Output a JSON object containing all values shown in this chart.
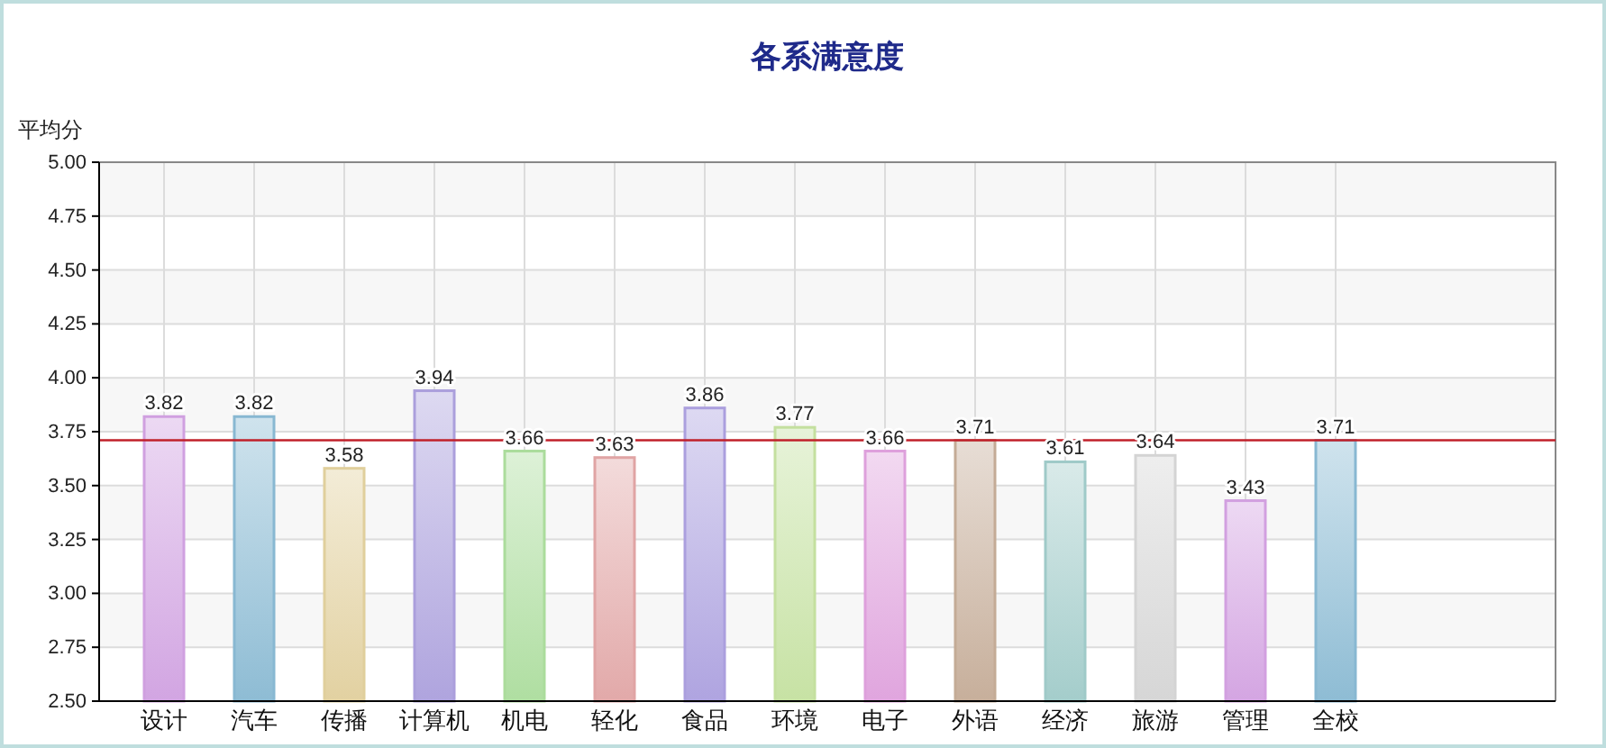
{
  "chart_data": {
    "type": "bar",
    "title": "各系满意度",
    "ylabel": "平均分",
    "categories": [
      "设计",
      "汽车",
      "传播",
      "计算机",
      "机电",
      "轻化",
      "食品",
      "环境",
      "电子",
      "外语",
      "经济",
      "旅游",
      "管理",
      "全校"
    ],
    "values": [
      3.82,
      3.82,
      3.58,
      3.94,
      3.66,
      3.63,
      3.86,
      3.77,
      3.66,
      3.71,
      3.61,
      3.64,
      3.43,
      3.71
    ],
    "colors": [
      "#d0a0e0",
      "#88b8d2",
      "#e0cf9c",
      "#ab9fdc",
      "#abdc9c",
      "#e0a4a4",
      "#ab9fde",
      "#c4e09f",
      "#dea0dc",
      "#c4ab96",
      "#9fcac8",
      "#d4d4d4",
      "#d2a0e0",
      "#88b8d2"
    ],
    "ylim": [
      2.5,
      5
    ],
    "yticks": [
      {
        "value": 2.5,
        "label": "2.50"
      },
      {
        "value": 2.75,
        "label": "2.75"
      },
      {
        "value": 3,
        "label": "3.00"
      },
      {
        "value": 3.25,
        "label": "3.25"
      },
      {
        "value": 3.5,
        "label": "3.50"
      },
      {
        "value": 3.75,
        "label": "3.75"
      },
      {
        "value": 4,
        "label": "4.00"
      },
      {
        "value": 4.25,
        "label": "4.25"
      },
      {
        "value": 4.5,
        "label": "4.50"
      },
      {
        "value": 4.75,
        "label": "4.75"
      },
      {
        "value": 5,
        "label": "5.00"
      }
    ],
    "grid": true,
    "data_labels": true,
    "ref_lines": [
      {
        "axis": "y",
        "value": 3.71,
        "color": "#c0202a"
      }
    ]
  }
}
